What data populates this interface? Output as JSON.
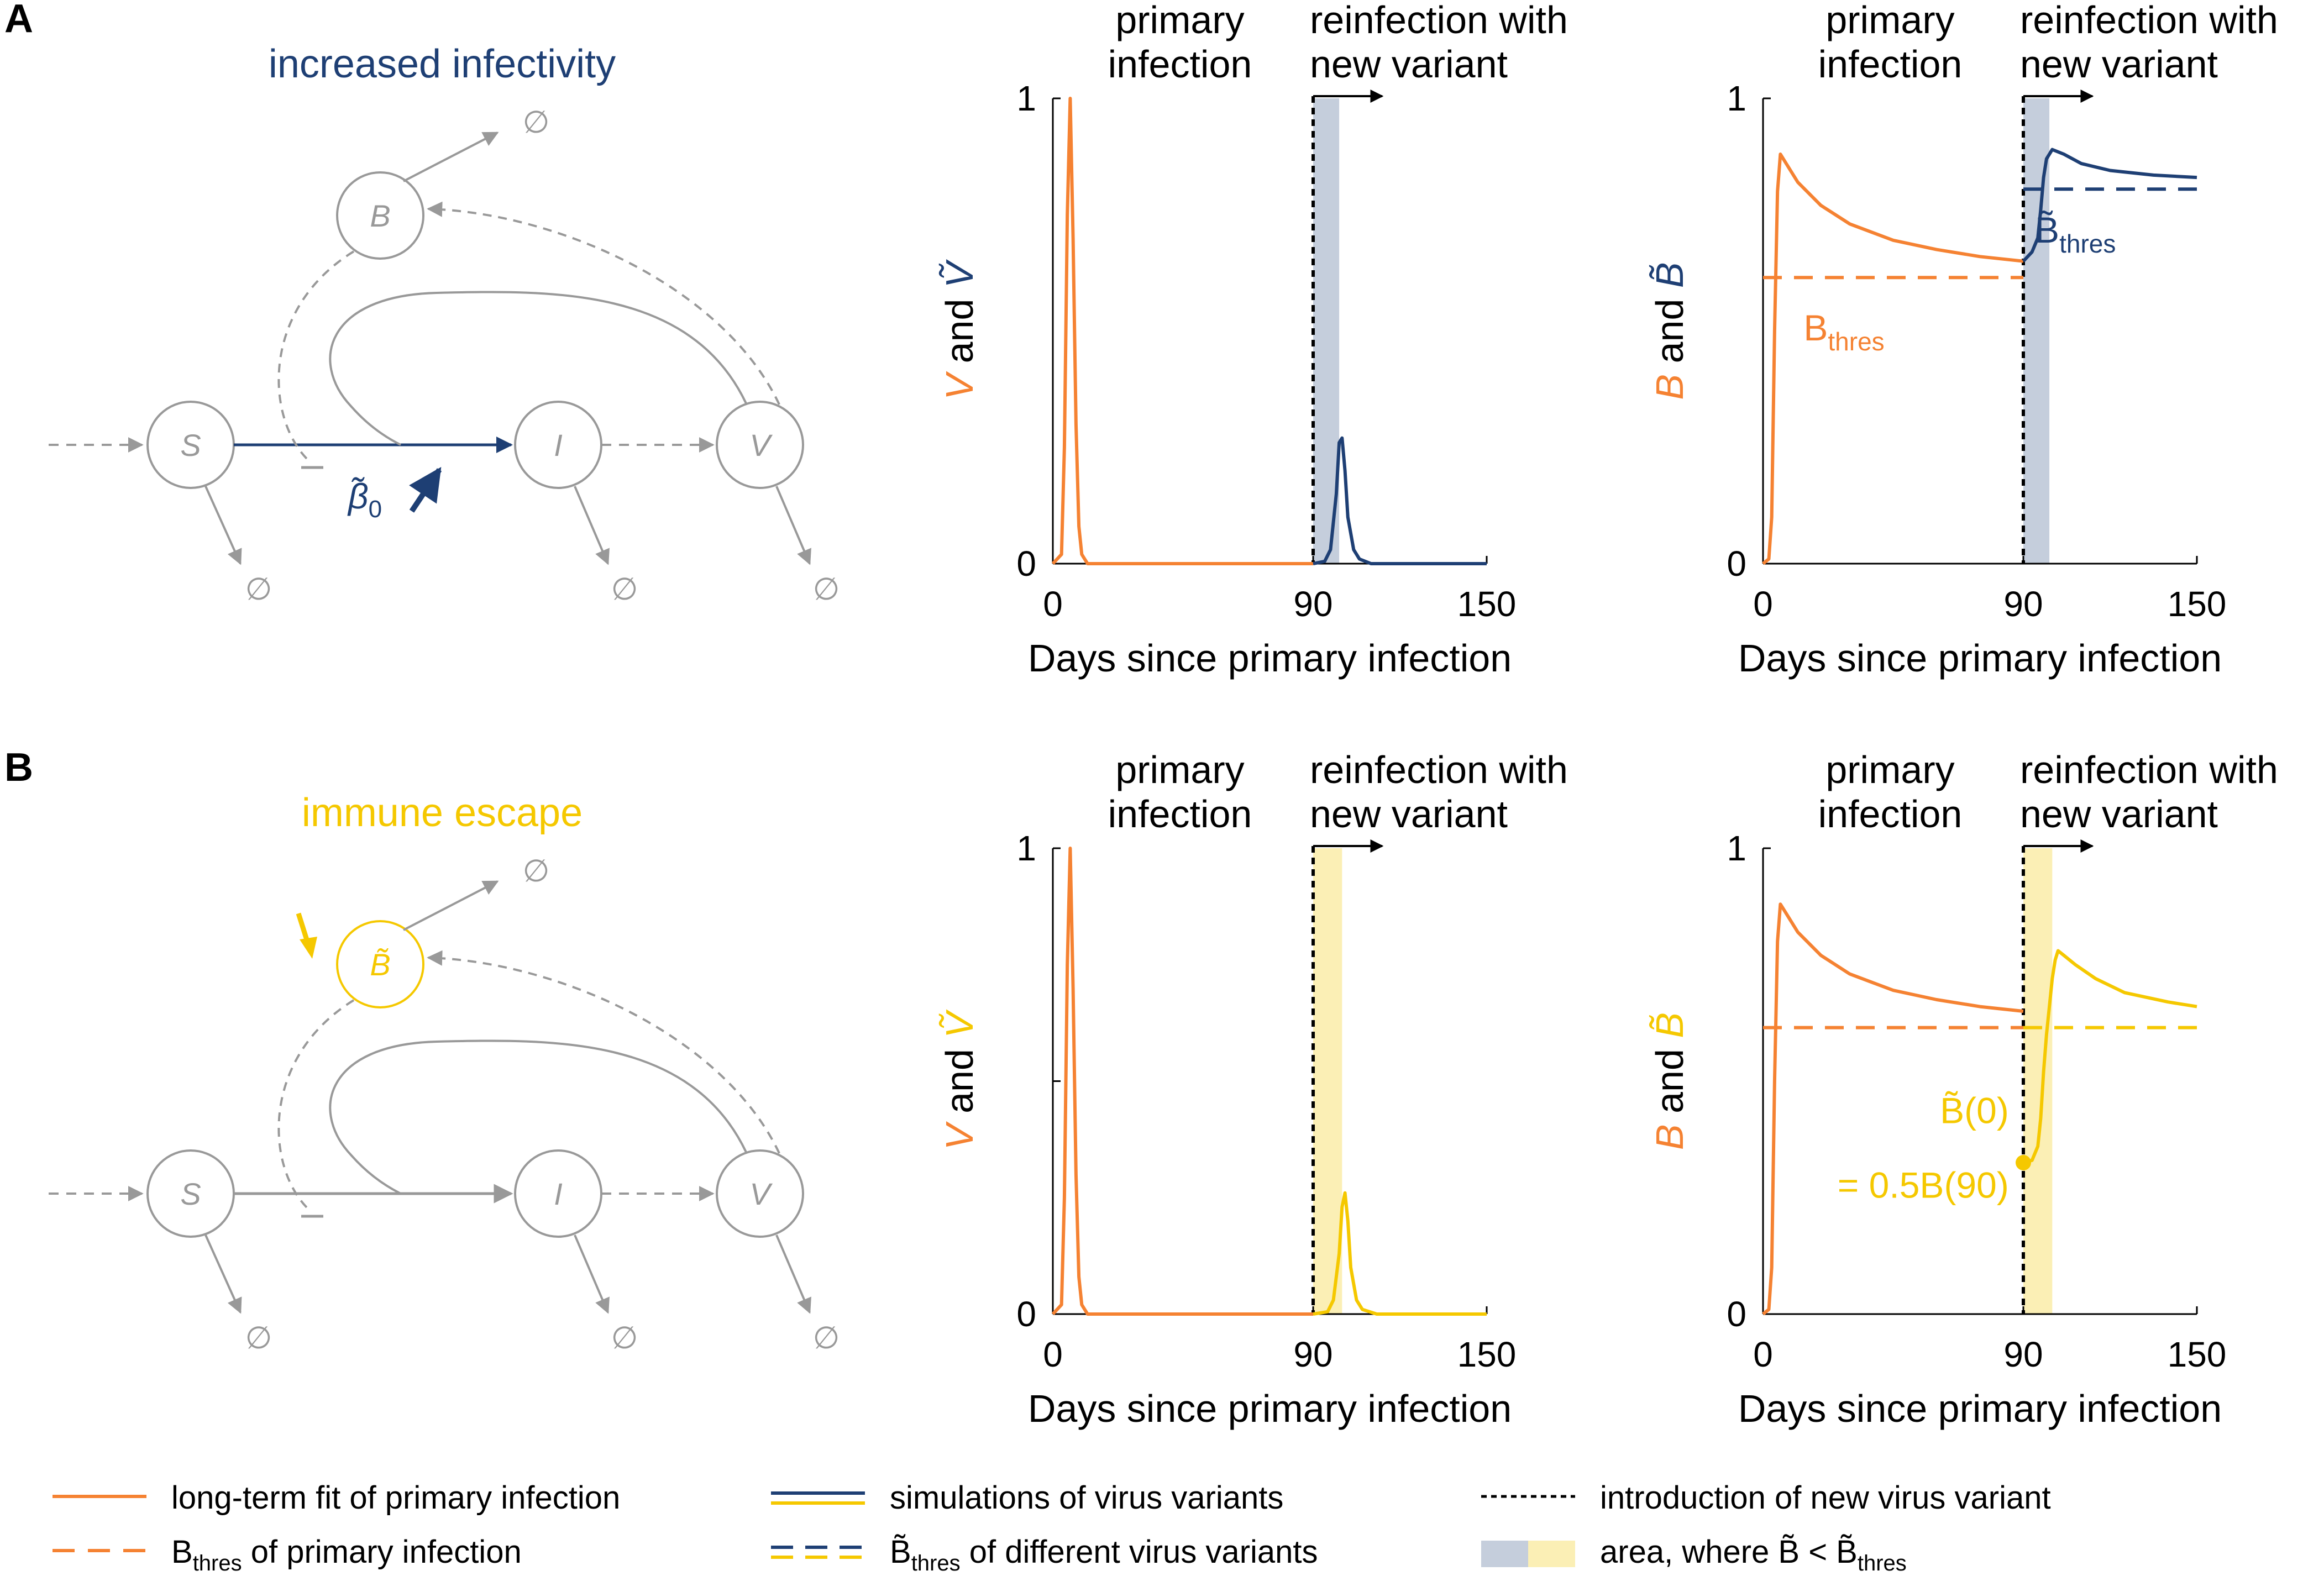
{
  "colors": {
    "orange": "#F58232",
    "navy": "#1E3F74",
    "yellow": "#F5C800",
    "gray": "#999999",
    "black": "#000000",
    "shade_navy": "#C5CEDC",
    "shade_yellow": "#FBEFB5"
  },
  "panels": [
    {
      "letter": "A",
      "scenario_label": "increased infectivity",
      "scenario_color": "navy",
      "nodes": {
        "S": "S",
        "I": "I",
        "V": "V",
        "B": "B"
      },
      "b_node_tilde": false,
      "b_node_color": "gray",
      "edge_label": "β̃",
      "edge_label_sub": "0",
      "perturb_icon": "up-arrow-icon",
      "null_symbol": "∅"
    },
    {
      "letter": "B",
      "scenario_label": "immune escape",
      "scenario_color": "yellow",
      "nodes": {
        "S": "S",
        "I": "I",
        "V": "V",
        "B": "B̃"
      },
      "b_node_tilde": true,
      "b_node_color": "yellow",
      "edge_label": "",
      "edge_label_sub": "",
      "perturb_icon": "down-arrow-icon",
      "null_symbol": "∅"
    }
  ],
  "headers": {
    "primary": [
      "primary",
      "infection"
    ],
    "reinfection": [
      "reinfection with",
      "new variant"
    ]
  },
  "chart_data": [
    {
      "id": "A-virus",
      "type": "line",
      "ylabel_parts": [
        {
          "t": "V",
          "c": "orange",
          "i": true
        },
        {
          "t": " and ",
          "c": "black",
          "i": false
        },
        {
          "t": "Ṽ",
          "c": "navy",
          "i": true
        }
      ],
      "xlabel": "Days since primary infection",
      "xlim": [
        0,
        150
      ],
      "ylim": [
        0,
        1
      ],
      "xticks": [
        {
          "v": 0,
          "label": "0"
        },
        {
          "v": 90,
          "label": "90"
        },
        {
          "v": 150,
          "label": "150"
        }
      ],
      "yticks": [
        {
          "v": 0,
          "label": "0"
        },
        {
          "v": 1,
          "label": "1"
        }
      ],
      "intro_day": 90,
      "shaded": {
        "from": 90,
        "to": 99,
        "color": "shade_navy"
      },
      "series": [
        {
          "name": "primary infection fit",
          "color": "orange",
          "dash": false,
          "x": [
            0,
            3,
            4,
            5,
            6,
            7,
            8,
            9,
            10,
            12,
            20,
            90
          ],
          "y": [
            0,
            0.02,
            0.25,
            0.75,
            1.0,
            0.7,
            0.3,
            0.08,
            0.02,
            0,
            0,
            0
          ]
        },
        {
          "name": "variant simulation",
          "color": "navy",
          "dash": false,
          "x": [
            90,
            94,
            96,
            98,
            99,
            100,
            101,
            102,
            104,
            106,
            110,
            120,
            150
          ],
          "y": [
            0,
            0.005,
            0.03,
            0.15,
            0.26,
            0.27,
            0.2,
            0.1,
            0.03,
            0.01,
            0,
            0,
            0
          ]
        }
      ],
      "annotations": []
    },
    {
      "id": "A-antibody",
      "type": "line",
      "ylabel_parts": [
        {
          "t": "B",
          "c": "orange",
          "i": true
        },
        {
          "t": " and ",
          "c": "black",
          "i": false
        },
        {
          "t": "B̃",
          "c": "navy",
          "i": true
        }
      ],
      "xlabel": "Days since primary infection",
      "xlim": [
        0,
        150
      ],
      "ylim": [
        0,
        1
      ],
      "xticks": [
        {
          "v": 0,
          "label": "0"
        },
        {
          "v": 90,
          "label": "90"
        },
        {
          "v": 150,
          "label": "150"
        }
      ],
      "yticks": [
        {
          "v": 0,
          "label": "0"
        },
        {
          "v": 1,
          "label": "1"
        }
      ],
      "intro_day": 90,
      "shaded": {
        "from": 90,
        "to": 99,
        "color": "shade_navy"
      },
      "series": [
        {
          "name": "primary infection fit",
          "color": "orange",
          "dash": false,
          "x": [
            0,
            2,
            3,
            4,
            5,
            6,
            8,
            12,
            20,
            30,
            45,
            60,
            75,
            90
          ],
          "y": [
            0,
            0.01,
            0.1,
            0.5,
            0.8,
            0.88,
            0.86,
            0.82,
            0.77,
            0.73,
            0.695,
            0.675,
            0.66,
            0.65
          ]
        },
        {
          "name": "B_thres primary",
          "color": "orange",
          "dash": true,
          "x": [
            0,
            90
          ],
          "y": [
            0.615,
            0.615
          ]
        },
        {
          "name": "variant simulation",
          "color": "navy",
          "dash": false,
          "x": [
            90,
            93,
            95,
            96,
            97,
            98,
            100,
            104,
            110,
            120,
            135,
            150
          ],
          "y": [
            0.65,
            0.67,
            0.7,
            0.76,
            0.83,
            0.87,
            0.89,
            0.88,
            0.86,
            0.845,
            0.835,
            0.83
          ]
        },
        {
          "name": "B_thres variant",
          "color": "navy",
          "dash": true,
          "x": [
            90,
            150
          ],
          "y": [
            0.805,
            0.805
          ]
        }
      ],
      "annotations": [
        {
          "text": "B",
          "sub": "thres",
          "tilde": false,
          "color": "orange",
          "x": 28,
          "y": 0.48
        },
        {
          "text": "B",
          "sub": "thres",
          "tilde": true,
          "color": "navy",
          "x": 108,
          "y": 0.69
        }
      ]
    },
    {
      "id": "B-virus",
      "type": "line",
      "ylabel_parts": [
        {
          "t": "V",
          "c": "orange",
          "i": true
        },
        {
          "t": " and ",
          "c": "black",
          "i": false
        },
        {
          "t": "Ṽ",
          "c": "yellow",
          "i": true
        }
      ],
      "xlabel": "Days since primary infection",
      "xlim": [
        0,
        150
      ],
      "ylim": [
        0,
        1
      ],
      "xticks": [
        {
          "v": 0,
          "label": "0"
        },
        {
          "v": 90,
          "label": "90"
        },
        {
          "v": 150,
          "label": "150"
        }
      ],
      "yticks": [
        {
          "v": 0,
          "label": "0"
        },
        {
          "v": 0.5,
          "label": ""
        },
        {
          "v": 1,
          "label": "1"
        }
      ],
      "intro_day": 90,
      "shaded": {
        "from": 90,
        "to": 100,
        "color": "shade_yellow"
      },
      "series": [
        {
          "name": "primary infection fit",
          "color": "orange",
          "dash": false,
          "x": [
            0,
            3,
            4,
            5,
            6,
            7,
            8,
            9,
            10,
            12,
            20,
            90
          ],
          "y": [
            0,
            0.02,
            0.25,
            0.75,
            1.0,
            0.7,
            0.3,
            0.08,
            0.02,
            0,
            0,
            0
          ]
        },
        {
          "name": "variant simulation",
          "color": "yellow",
          "dash": false,
          "x": [
            90,
            95,
            97,
            99,
            100,
            101,
            102,
            103,
            105,
            107,
            112,
            120,
            150
          ],
          "y": [
            0,
            0.005,
            0.03,
            0.13,
            0.23,
            0.26,
            0.2,
            0.1,
            0.03,
            0.01,
            0,
            0,
            0
          ]
        }
      ],
      "annotations": []
    },
    {
      "id": "B-antibody",
      "type": "line",
      "ylabel_parts": [
        {
          "t": "B",
          "c": "orange",
          "i": true
        },
        {
          "t": " and ",
          "c": "black",
          "i": false
        },
        {
          "t": "B̃",
          "c": "yellow",
          "i": true
        }
      ],
      "xlabel": "Days since primary infection",
      "xlim": [
        0,
        150
      ],
      "ylim": [
        0,
        1
      ],
      "xticks": [
        {
          "v": 0,
          "label": "0"
        },
        {
          "v": 90,
          "label": "90"
        },
        {
          "v": 150,
          "label": "150"
        }
      ],
      "yticks": [
        {
          "v": 0,
          "label": "0"
        },
        {
          "v": 1,
          "label": "1"
        }
      ],
      "intro_day": 90,
      "shaded": {
        "from": 90,
        "to": 100,
        "color": "shade_yellow"
      },
      "series": [
        {
          "name": "primary infection fit",
          "color": "orange",
          "dash": false,
          "x": [
            0,
            2,
            3,
            4,
            5,
            6,
            8,
            12,
            20,
            30,
            45,
            60,
            75,
            90
          ],
          "y": [
            0,
            0.01,
            0.1,
            0.5,
            0.8,
            0.88,
            0.86,
            0.82,
            0.77,
            0.73,
            0.695,
            0.675,
            0.66,
            0.65
          ]
        },
        {
          "name": "B_thres primary",
          "color": "orange",
          "dash": true,
          "x": [
            0,
            90
          ],
          "y": [
            0.615,
            0.615
          ]
        },
        {
          "name": "variant simulation",
          "color": "yellow",
          "dash": false,
          "x": [
            90,
            93,
            95,
            96,
            97,
            98,
            99,
            100,
            101,
            102,
            104,
            108,
            115,
            125,
            140,
            150
          ],
          "y": [
            0.325,
            0.33,
            0.36,
            0.42,
            0.52,
            0.6,
            0.66,
            0.72,
            0.76,
            0.78,
            0.77,
            0.75,
            0.72,
            0.69,
            0.67,
            0.66
          ]
        },
        {
          "name": "B_thres variant",
          "color": "yellow",
          "dash": true,
          "x": [
            90,
            150
          ],
          "y": [
            0.615,
            0.615
          ]
        }
      ],
      "annotations": [
        {
          "text": "B̃(0)",
          "sub": "",
          "tilde": false,
          "color": "yellow",
          "x": 85,
          "y": 0.41,
          "anchor": "end"
        },
        {
          "text": "= 0.5B(90)",
          "sub": "",
          "tilde": false,
          "color": "yellow",
          "x": 85,
          "y": 0.25,
          "anchor": "end"
        }
      ],
      "marker": {
        "x": 90,
        "y": 0.325,
        "color": "yellow"
      }
    }
  ],
  "legend": [
    {
      "label": "long-term fit of primary infection",
      "colors": [
        "orange"
      ],
      "style": "solid"
    },
    {
      "label": "B",
      "sub": "thres",
      "suffix": " of primary infection",
      "colors": [
        "orange"
      ],
      "style": "dashed"
    },
    {
      "label": "simulations of virus variants",
      "colors": [
        "navy",
        "yellow"
      ],
      "style": "solid"
    },
    {
      "label": "B̃",
      "sub": "thres",
      "suffix": " of different virus variants",
      "colors": [
        "navy",
        "yellow"
      ],
      "style": "dashed"
    },
    {
      "label": "introduction of new virus variant",
      "colors": [
        "black"
      ],
      "style": "dotted"
    },
    {
      "label": "area, where B̃ < B̃",
      "sub": "thres",
      "suffix": "",
      "colors": [
        "shade_navy",
        "shade_yellow"
      ],
      "style": "area"
    }
  ]
}
